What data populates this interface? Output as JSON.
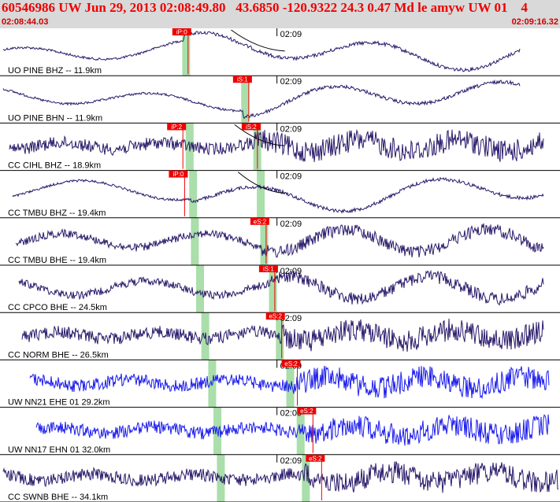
{
  "header": {
    "title": "60546986 UW Jun 29, 2013 02:08:49.80   43.6850 -120.9322 24.3 0.47 Md le amyw UW 01    4",
    "time_start": "02:08:44.03",
    "time_end": "02:09:16.32"
  },
  "colors": {
    "background": "#ffffff",
    "header_bg": "#d9d9d9",
    "title_text": "#ee0000",
    "trace_dark": "#2a1a6a",
    "trace_blue": "#1a1aee",
    "pick_box": "#ee0000",
    "band": "#9bd89b",
    "separator": "#000000"
  },
  "chart_data": {
    "type": "line",
    "time_range": [
      "02:08:44.03",
      "02:09:16.32"
    ],
    "minute_tick_label": "02:09",
    "traces": [
      {
        "label": "UO PINE BHZ -- 11.9km",
        "color": "dark",
        "character": "smooth",
        "pick": {
          "label": "iP:0",
          "time_s": 10.3
        },
        "band_time_s": 10.6,
        "has_curve": true
      },
      {
        "label": "UO PINE BHN -- 11.9km",
        "color": "dark",
        "character": "smooth",
        "pick": {
          "label": "iS:1",
          "time_s": 13.8
        },
        "band_time_s": 14.0,
        "has_curve": false
      },
      {
        "label": "CC CIHL BHZ -- 18.9km",
        "color": "dark",
        "character": "noisy",
        "picks": [
          {
            "label": "iP:2",
            "time_s": 10.0
          },
          {
            "label": "iS:2",
            "time_s": 14.3
          }
        ],
        "band_time_s": 10.8,
        "band2_time_s": 14.7,
        "has_curve": true
      },
      {
        "label": "CC TMBU BHZ -- 19.4km",
        "color": "dark",
        "character": "smooth",
        "pick": {
          "label": "iP:0",
          "time_s": 10.1
        },
        "band_time_s": 11.0,
        "band2_time_s": 14.9,
        "has_curve": true
      },
      {
        "label": "CC TMBU BHE -- 19.4km",
        "color": "dark",
        "character": "mixed",
        "pick": {
          "label": "eS:2",
          "time_s": 14.8
        },
        "band_time_s": 11.1,
        "band2_time_s": 15.1,
        "has_curve": false
      },
      {
        "label": "CC CPCO BHE -- 24.5km",
        "color": "dark",
        "character": "mixed",
        "pick": {
          "label": "iS:1",
          "time_s": 15.3
        },
        "band_time_s": 11.4,
        "band2_time_s": 15.6,
        "has_curve": false
      },
      {
        "label": "CC NORM BHE -- 26.5km",
        "color": "dark",
        "character": "noisy",
        "pick": {
          "label": "eS:2",
          "time_s": 15.7
        },
        "band_time_s": 11.7,
        "band2_time_s": 16.0,
        "has_curve": false
      },
      {
        "label": "UW NN21 EHE 01 29.2km",
        "color": "blue",
        "character": "noisy",
        "pick": {
          "label": "eS:2",
          "time_s": 16.6
        },
        "band_time_s": 12.1,
        "band2_time_s": 16.6,
        "has_curve": false
      },
      {
        "label": "UW NN17 EHN 01 32.0km",
        "color": "blue",
        "character": "noisy",
        "pick": {
          "label": "eS:2",
          "time_s": 17.5
        },
        "band_time_s": 12.4,
        "band2_time_s": 17.2,
        "has_curve": false
      },
      {
        "label": "CC SWNB BHE -- 34.1km",
        "color": "dark",
        "character": "noisy",
        "pick": {
          "label": "eS:2",
          "time_s": 18.0
        },
        "band_time_s": 12.6,
        "band2_time_s": 17.5,
        "has_curve": false
      }
    ]
  }
}
